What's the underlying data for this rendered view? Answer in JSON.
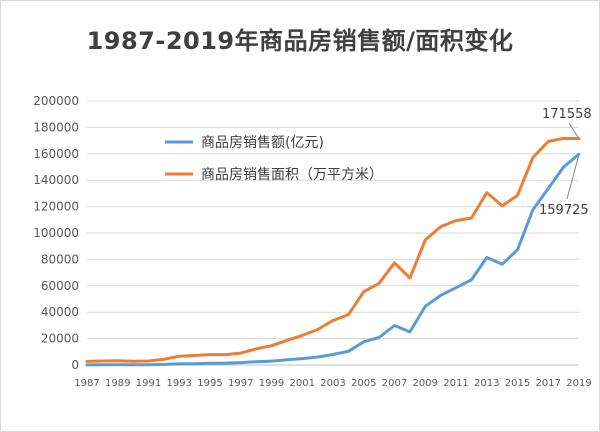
{
  "chart_data": {
    "type": "line",
    "title": "1987-2019年商品房销售额/面积变化",
    "xlabel": "",
    "ylabel": "",
    "ylim": [
      0,
      200000
    ],
    "yticks": [
      0,
      20000,
      40000,
      60000,
      80000,
      100000,
      120000,
      140000,
      160000,
      180000,
      200000
    ],
    "grid": true,
    "legend": "top-left",
    "x": [
      1987,
      1988,
      1989,
      1990,
      1991,
      1992,
      1993,
      1994,
      1995,
      1996,
      1997,
      1998,
      1999,
      2000,
      2001,
      2002,
      2003,
      2004,
      2005,
      2006,
      2007,
      2008,
      2009,
      2010,
      2011,
      2012,
      2013,
      2014,
      2015,
      2016,
      2017,
      2018,
      2019
    ],
    "xtick_labels": [
      "1987",
      "1989",
      "1991",
      "1993",
      "1995",
      "1997",
      "1999",
      "2001",
      "2003",
      "2005",
      "2007",
      "2009",
      "2011",
      "2013",
      "2015",
      "2017",
      "2019"
    ],
    "series": [
      {
        "name": "商品房销售额(亿元)",
        "color": "#5b9bd5",
        "values": [
          110,
          150,
          200,
          220,
          240,
          430,
          860,
          1020,
          1260,
          1430,
          1800,
          2510,
          2990,
          3940,
          4860,
          6030,
          7960,
          10380,
          17580,
          20830,
          29890,
          25070,
          44360,
          52720,
          58590,
          64460,
          81430,
          76290,
          87280,
          117630,
          133700,
          149970,
          159725
        ]
      },
      {
        "name": "商品房销售面积（万平方米）",
        "color": "#ed7d31",
        "values": [
          2700,
          3000,
          3200,
          2900,
          3000,
          4300,
          6700,
          7200,
          7900,
          7900,
          9000,
          12200,
          14600,
          18600,
          22400,
          26800,
          33700,
          38200,
          55500,
          61900,
          77400,
          65900,
          94800,
          104800,
          109400,
          111300,
          130600,
          120600,
          128500,
          157300,
          169400,
          171700,
          171558
        ]
      }
    ],
    "annotations": [
      {
        "text": "171558",
        "series": 1,
        "x": 2019
      },
      {
        "text": "159725",
        "series": 0,
        "x": 2019
      }
    ]
  }
}
